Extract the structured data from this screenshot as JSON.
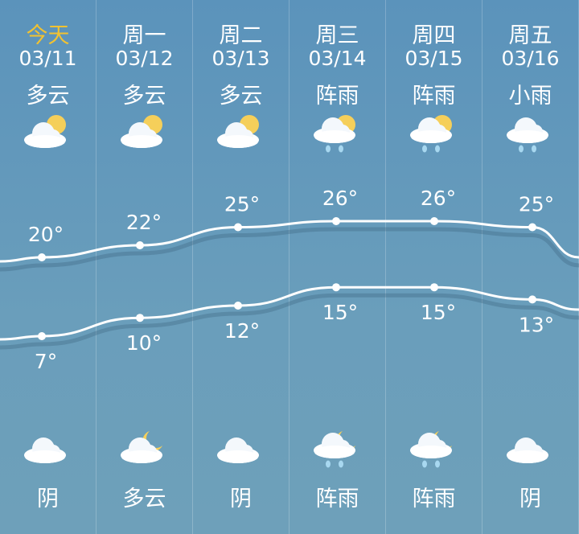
{
  "days": [
    {
      "day": "今天",
      "date": "03/11",
      "day_condition": "多云",
      "day_icon": "partly-cloudy-day-icon",
      "high": 20,
      "low": 7,
      "night_condition": "阴",
      "night_icon": "overcast-cloud-icon",
      "today": true
    },
    {
      "day": "周一",
      "date": "03/12",
      "day_condition": "多云",
      "day_icon": "partly-cloudy-day-icon",
      "high": 22,
      "low": 10,
      "night_condition": "多云",
      "night_icon": "partly-cloudy-night-icon"
    },
    {
      "day": "周二",
      "date": "03/13",
      "day_condition": "多云",
      "day_icon": "partly-cloudy-day-icon",
      "high": 25,
      "low": 12,
      "night_condition": "阴",
      "night_icon": "overcast-cloud-icon"
    },
    {
      "day": "周三",
      "date": "03/14",
      "day_condition": "阵雨",
      "day_icon": "shower-day-icon",
      "high": 26,
      "low": 15,
      "night_condition": "阵雨",
      "night_icon": "shower-night-icon"
    },
    {
      "day": "周四",
      "date": "03/15",
      "day_condition": "阵雨",
      "day_icon": "shower-day-icon",
      "high": 26,
      "low": 15,
      "night_condition": "阵雨",
      "night_icon": "shower-night-icon"
    },
    {
      "day": "周五",
      "date": "03/16",
      "day_condition": "小雨",
      "day_icon": "light-rain-icon",
      "high": 25,
      "low": 13,
      "night_condition": "阴",
      "night_icon": "overcast-cloud-icon"
    }
  ],
  "degree_symbol": "°",
  "colors": {
    "today": "#f2c230",
    "sun": "#f5cf5a",
    "cloud": "#ffffff",
    "rain": "#a8d8f0"
  }
}
